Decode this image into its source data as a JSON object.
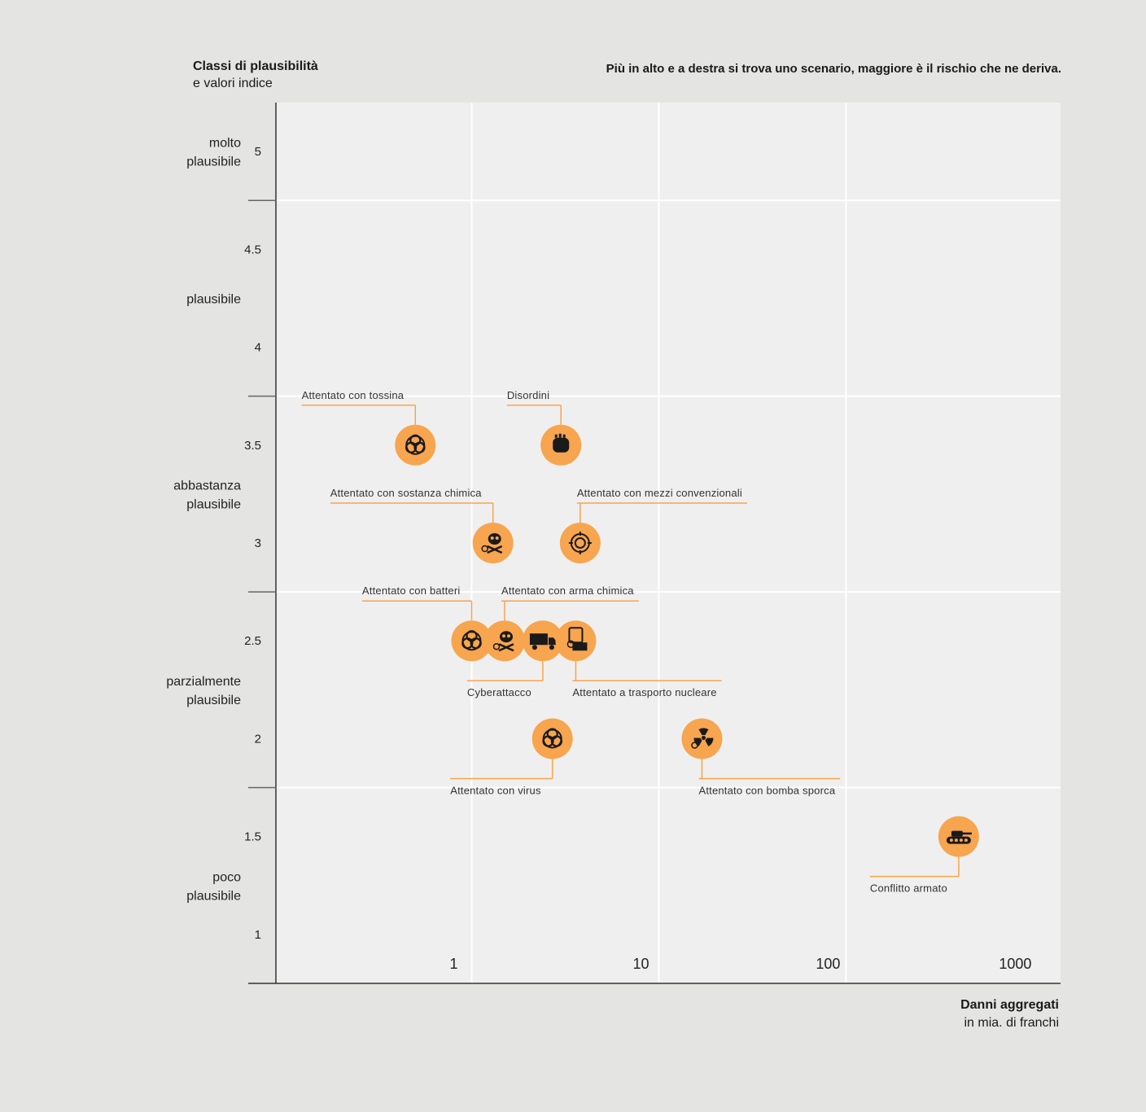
{
  "colors": {
    "page_bg": "#e4e4e3",
    "plot_bg": "#efefef",
    "grid": "#ffffff",
    "axis": "#333333",
    "accent": "#f7a54e",
    "leader": "#f7a54e",
    "icon": "#1a1a1a"
  },
  "chart_data": {
    "type": "scatter",
    "title": "Più in alto e a destra si trova uno scenario, maggiore è il rischio che ne deriva.",
    "ylabel": "Classi di plausibilità",
    "ylabel_sub": "e valori indice",
    "xlabel": "Danni aggregati",
    "xlabel_sub": "in mia. di franchi",
    "x_scale": "log",
    "xlim": [
      0.09,
      1400
    ],
    "ylim": [
      0.75,
      5.25
    ],
    "xticks": [
      {
        "value": 1,
        "label": "1"
      },
      {
        "value": 10,
        "label": "10"
      },
      {
        "value": 100,
        "label": "100"
      },
      {
        "value": 1000,
        "label": "1000"
      }
    ],
    "yticks": [
      {
        "value": 5,
        "label": "5"
      },
      {
        "value": 4.5,
        "label": "4.5"
      },
      {
        "value": 4,
        "label": "4"
      },
      {
        "value": 3.5,
        "label": "3.5"
      },
      {
        "value": 3,
        "label": "3"
      },
      {
        "value": 2.5,
        "label": "2.5"
      },
      {
        "value": 2,
        "label": "2"
      },
      {
        "value": 1.5,
        "label": "1.5"
      },
      {
        "value": 1,
        "label": "1"
      }
    ],
    "class_bounds": [
      4.75,
      3.75,
      2.75,
      1.75
    ],
    "x_grid": [
      1,
      10,
      100
    ],
    "classes": [
      {
        "label": [
          "molto",
          "plausibile"
        ],
        "value": 5
      },
      {
        "label": [
          "plausibile"
        ],
        "value": 4.25
      },
      {
        "label": [
          "abbastanza",
          "plausibile"
        ],
        "value": 3.25
      },
      {
        "label": [
          "parzialmente",
          "plausibile"
        ],
        "value": 2.25
      },
      {
        "label": [
          "poco",
          "plausibile"
        ],
        "value": 1.25
      }
    ],
    "points": [
      {
        "name": "Attentato con tossina",
        "x": 0.5,
        "y": 3.5,
        "icon": "biohazard-icon",
        "label_pos": "above-left"
      },
      {
        "name": "Disordini",
        "x": 3.0,
        "y": 3.5,
        "icon": "fist-icon",
        "label_pos": "above-left"
      },
      {
        "name": "Attentato con sostanza chimica",
        "x": 1.3,
        "y": 3.0,
        "icon": "skull-icon",
        "label_pos": "above-left"
      },
      {
        "name": "Attentato con mezzi convenzionali",
        "x": 3.8,
        "y": 3.0,
        "icon": "target-icon",
        "label_pos": "above-right"
      },
      {
        "name": "Attentato con batteri",
        "x": 1.0,
        "y": 2.5,
        "icon": "biohazard-icon",
        "label_pos": "above-left"
      },
      {
        "name": "Attentato con arma chimica",
        "x": 1.5,
        "y": 2.5,
        "icon": "skull-icon",
        "label_pos": "above-right"
      },
      {
        "name": "Cyberattacco",
        "x": 2.4,
        "y": 2.5,
        "icon": "truck-icon",
        "label_pos": "below-left"
      },
      {
        "name": "Attentato a trasporto nucleare",
        "x": 3.6,
        "y": 2.5,
        "icon": "container-icon",
        "label_pos": "below-right"
      },
      {
        "name": "Attentato con virus",
        "x": 2.7,
        "y": 2.0,
        "icon": "biohazard-icon",
        "label_pos": "below-left"
      },
      {
        "name": "Attentato con bomba sporca",
        "x": 17,
        "y": 2.0,
        "icon": "radiation-icon",
        "label_pos": "below-right"
      },
      {
        "name": "Conflitto armato",
        "x": 400,
        "y": 1.5,
        "icon": "tank-icon",
        "label_pos": "below-left"
      }
    ]
  }
}
